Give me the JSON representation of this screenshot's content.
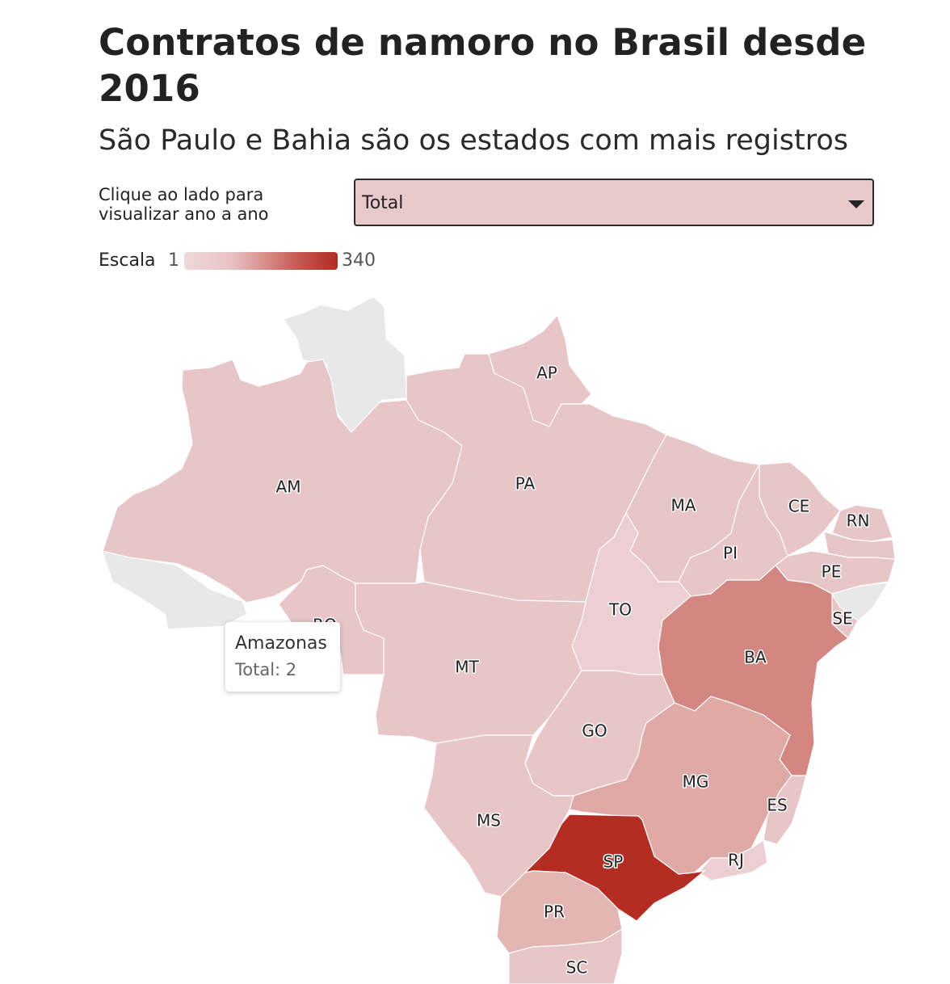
{
  "header": {
    "title": "Contratos de namoro no Brasil desde 2016",
    "subtitle": "São Paulo e Bahia são os estados com mais registros"
  },
  "controls": {
    "hint": "Clique ao lado para visualizar ano a ano",
    "select_value": "Total"
  },
  "legend": {
    "label": "Escala",
    "min": "1",
    "max": "340",
    "color_min": "#eed8d9",
    "color_max": "#b12d23"
  },
  "tooltip": {
    "state": "Amazonas",
    "value_text": "Total: 2"
  },
  "colors": {
    "light": "#e8c6c7",
    "lighter": "#eccfd0",
    "mid": "#dfa9a6",
    "bahia": "#d48681",
    "sp": "#b52d22",
    "no_data": "#e8e8e8"
  },
  "states": [
    {
      "abbr": "AM"
    },
    {
      "abbr": "PA"
    },
    {
      "abbr": "AP"
    },
    {
      "abbr": "MA"
    },
    {
      "abbr": "CE"
    },
    {
      "abbr": "RN"
    },
    {
      "abbr": "PI"
    },
    {
      "abbr": "PE"
    },
    {
      "abbr": "SE"
    },
    {
      "abbr": "TO"
    },
    {
      "abbr": "BA"
    },
    {
      "abbr": "MT"
    },
    {
      "abbr": "RO"
    },
    {
      "abbr": "GO"
    },
    {
      "abbr": "MG"
    },
    {
      "abbr": "ES"
    },
    {
      "abbr": "MS"
    },
    {
      "abbr": "SP"
    },
    {
      "abbr": "RJ"
    },
    {
      "abbr": "PR"
    },
    {
      "abbr": "SC"
    }
  ]
}
